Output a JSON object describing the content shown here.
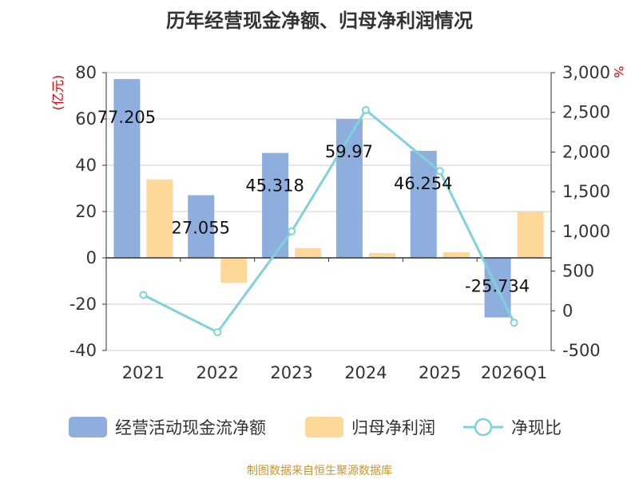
{
  "colors": {
    "bar_cash": "#8eaedd",
    "bar_profit": "#fdd898",
    "line_ratio": "#7fd3d8",
    "grid": "#cccccc",
    "axis": "#333333",
    "unit": "#e00000",
    "source": "#c8962a"
  },
  "chart_data": {
    "type": "bar",
    "title": "历年经营现金净额、归母净利润情况",
    "left_unit": "(亿元)",
    "right_unit": "%",
    "categories": [
      "2021",
      "2022",
      "2023",
      "2024",
      "2025",
      "2026Q1"
    ],
    "y_left": {
      "min": -40,
      "max": 80,
      "ticks": [
        "80",
        "60",
        "40",
        "20",
        "0",
        "-20",
        "-40"
      ],
      "tick_values": [
        80,
        60,
        40,
        20,
        0,
        -20,
        -40
      ]
    },
    "y_right": {
      "min": -500,
      "max": 3000,
      "ticks": [
        "3,000",
        "2,500",
        "2,000",
        "1,500",
        "1,000",
        "500",
        "0",
        "-500"
      ],
      "tick_values": [
        3000,
        2500,
        2000,
        1500,
        1000,
        500,
        0,
        -500
      ]
    },
    "series": [
      {
        "name": "经营活动现金流净额",
        "type": "bar",
        "axis": "left",
        "values": [
          77.205,
          27.055,
          45.318,
          59.97,
          46.254,
          -25.734
        ],
        "labels": [
          "77.205",
          "27.055",
          "45.318",
          "59.97",
          "46.254",
          "-25.734"
        ]
      },
      {
        "name": "归母净利润",
        "type": "bar",
        "axis": "left",
        "values": [
          33.9,
          -10.8,
          4.2,
          2.1,
          2.4,
          20.0
        ]
      },
      {
        "name": "净现比",
        "type": "line",
        "axis": "right",
        "values": [
          200,
          -270,
          1000,
          2530,
          1760,
          -150
        ]
      }
    ],
    "legend_position": "bottom"
  },
  "source": "制图数据来自恒生聚源数据库"
}
